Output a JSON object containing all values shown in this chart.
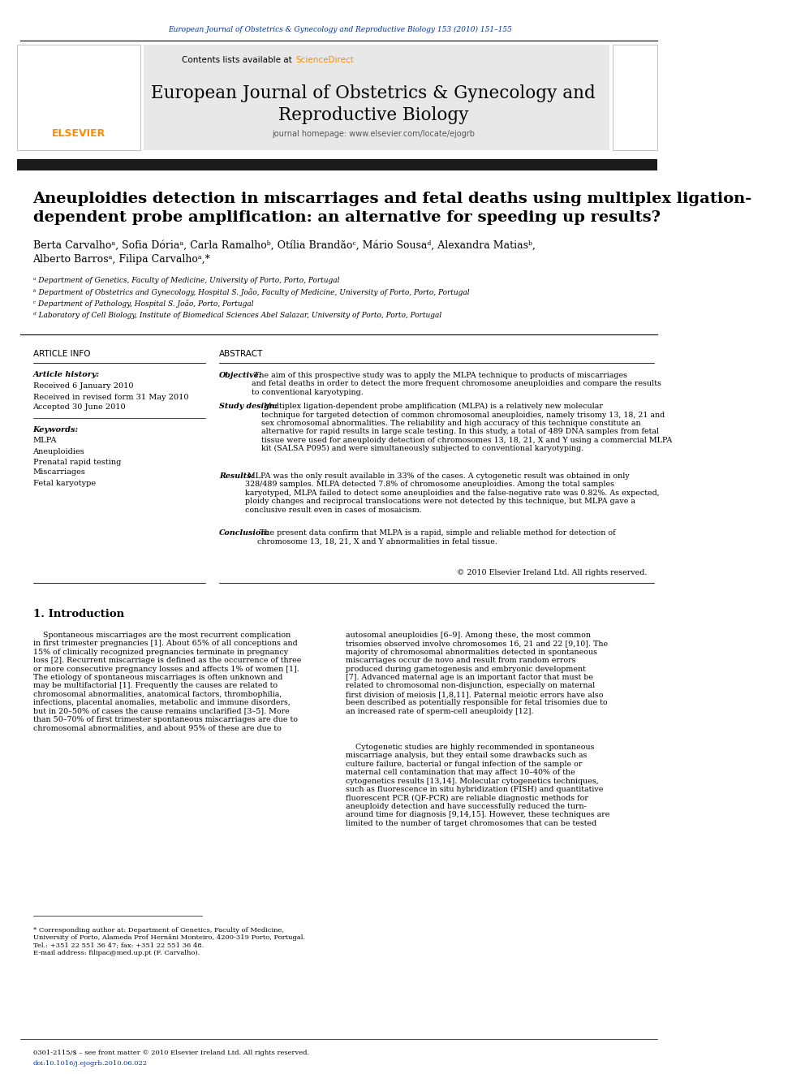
{
  "page_width": 9.92,
  "page_height": 13.23,
  "bg_color": "#ffffff",
  "top_journal_line": "European Journal of Obstetrics & Gynecology and Reproductive Biology 153 (2010) 151–155",
  "top_journal_color": "#003399",
  "header_bg": "#e8e8e8",
  "journal_title_line1": "European Journal of Obstetrics & Gynecology and",
  "journal_title_line2": "Reproductive Biology",
  "journal_homepage": "journal homepage: www.elsevier.com/locate/ejogrb",
  "black_bar_color": "#1a1a1a",
  "article_title_line1": "Aneuploidies detection in miscarriages and fetal deaths using multiplex ligation-",
  "article_title_line2": "dependent probe amplification: an alternative for speeding up results?",
  "authors_line1": "Berta Carvalhoᵃ, Sofia Dóriaᵃ, Carla Ramalhoᵇ, Otília Brandãoᶜ, Mário Sousaᵈ, Alexandra Matiasᵇ,",
  "authors_line2": "Alberto Barrosᵃ, Filipa Carvalhoᵃ,*",
  "affil_a": "ᵃ Department of Genetics, Faculty of Medicine, University of Porto, Porto, Portugal",
  "affil_b": "ᵇ Department of Obstetrics and Gynecology, Hospital S. João, Faculty of Medicine, University of Porto, Porto, Portugal",
  "affil_c": "ᶜ Department of Pathology, Hospital S. João, Porto, Portugal",
  "affil_d": "ᵈ Laboratory of Cell Biology, Institute of Biomedical Sciences Abel Salazar, University of Porto, Porto, Portugal",
  "article_info_header": "ARTICLE INFO",
  "abstract_header": "ABSTRACT",
  "article_history_label": "Article history:",
  "received1": "Received 6 January 2010",
  "received2": "Received in revised form 31 May 2010",
  "accepted": "Accepted 30 June 2010",
  "keywords_label": "Keywords:",
  "keywords": [
    "MLPA",
    "Aneuploidies",
    "Prenatal rapid testing",
    "Miscarriages",
    "Fetal karyotype"
  ],
  "objective_label": "Objective:",
  "objective_text": " The aim of this prospective study was to apply the MLPA technique to products of miscarriages\nand fetal deaths in order to detect the more frequent chromosome aneuploidies and compare the results\nto conventional karyotyping.",
  "study_design_label": "Study design:",
  "study_design_text": " Multiplex ligation-dependent probe amplification (MLPA) is a relatively new molecular\ntechnique for targeted detection of common chromosomal aneuploidies, namely trisomy 13, 18, 21 and\nsex chromosomal abnormalities. The reliability and high accuracy of this technique constitute an\nalternative for rapid results in large scale testing. In this study, a total of 489 DNA samples from fetal\ntissue were used for aneuploidy detection of chromosomes 13, 18, 21, X and Y using a commercial MLPA\nkit (SALSA P095) and were simultaneously subjected to conventional karyotyping.",
  "results_label": "Results:",
  "results_text": " MLPA was the only result available in 33% of the cases. A cytogenetic result was obtained in only\n328/489 samples. MLPA detected 7.8% of chromosome aneuploidies. Among the total samples\nkaryotyped, MLPA failed to detect some aneuploidies and the false-negative rate was 0.82%. As expected,\nploidy changes and reciprocal translocations were not detected by this technique, but MLPA gave a\nconclusive result even in cases of mosaicism.",
  "conclusion_label": "Conclusion:",
  "conclusion_text": " The present data confirm that MLPA is a rapid, simple and reliable method for detection of\nchromosome 13, 18, 21, X and Y abnormalities in fetal tissue.",
  "copyright": "© 2010 Elsevier Ireland Ltd. All rights reserved.",
  "intro_header": "1. Introduction",
  "intro_col1_p1": "    Spontaneous miscarriages are the most recurrent complication\nin first trimester pregnancies [1]. About 65% of all conceptions and\n15% of clinically recognized pregnancies terminate in pregnancy\nloss [2]. Recurrent miscarriage is defined as the occurrence of three\nor more consecutive pregnancy losses and affects 1% of women [1].\nThe etiology of spontaneous miscarriages is often unknown and\nmay be multifactorial [1]. Frequently the causes are related to\nchromosomal abnormalities, anatomical factors, thrombophilia,\ninfections, placental anomalies, metabolic and immune disorders,\nbut in 20–50% of cases the cause remains unclarified [3–5]. More\nthan 50–70% of first trimester spontaneous miscarriages are due to\nchromosomal abnormalities, and about 95% of these are due to",
  "intro_col2_p1": "autosomal aneuploidies [6–9]. Among these, the most common\ntrisomies observed involve chromosomes 16, 21 and 22 [9,10]. The\nmajority of chromosomal abnormalities detected in spontaneous\nmiscarriages occur de novo and result from random errors\nproduced during gametogenesis and embryonic development\n[7]. Advanced maternal age is an important factor that must be\nrelated to chromosomal non-disjunction, especially on maternal\nfirst division of meiosis [1,8,11]. Paternal meiotic errors have also\nbeen described as potentially responsible for fetal trisomies due to\nan increased rate of sperm-cell aneuploidy [12].",
  "intro_col2_p2": "    Cytogenetic studies are highly recommended in spontaneous\nmiscarriage analysis, but they entail some drawbacks such as\nculture failure, bacterial or fungal infection of the sample or\nmaternal cell contamination that may affect 10–40% of the\ncytogenetics results [13,14]. Molecular cytogenetics techniques,\nsuch as fluorescence in situ hybridization (FISH) and quantitative\nfluorescent PCR (QF-PCR) are reliable diagnostic methods for\naneuploidy detection and have successfully reduced the turn-\naround time for diagnosis [9,14,15]. However, these techniques are\nlimited to the number of target chromosomes that can be tested",
  "footnote_text": "* Corresponding author at: Department of Genetics, Faculty of Medicine,\nUniversity of Porto, Alameda Prof Hernâni Monteiro, 4200-319 Porto, Portugal.\nTel.: +351 22 551 36 47; fax: +351 22 551 36 48.\nE-mail address: filipac@med.up.pt (F. Carvalho).",
  "bottom_left": "0301-2115/$ – see front matter © 2010 Elsevier Ireland Ltd. All rights reserved.",
  "bottom_doi": "doi:10.1016/j.ejogrb.2010.06.022",
  "elsevier_color": "#ff8c00",
  "link_color": "#003399",
  "sciencedirect_color": "#ff8c00"
}
